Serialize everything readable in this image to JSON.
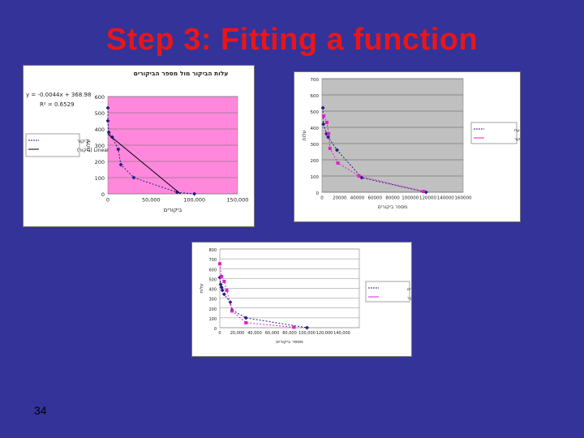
{
  "slide": {
    "title": "Step 3: Fitting a function",
    "page_number": "34"
  },
  "chart_data": [
    {
      "type": "scatter",
      "title": "עלות הביקור מול מספר הביקורים",
      "xlabel": "ביקורים",
      "ylabel": "עלות",
      "xlim": [
        0,
        150000
      ],
      "ylim": [
        0,
        600
      ],
      "x_ticks": [
        "0",
        "50,000",
        "100,000",
        "150,000"
      ],
      "y_ticks": [
        "0",
        "100",
        "200",
        "300",
        "400",
        "500",
        "600"
      ],
      "equation": "y = -0.0044x + 368.98",
      "r2": "R² = 0.6529",
      "plot_background": "#ff88dd",
      "legend": [
        "ביקור",
        "Linear (ביקור)"
      ],
      "series": [
        {
          "name": "ביקור",
          "color": "#202080",
          "points": [
            [
              0,
              530
            ],
            [
              0,
              450
            ],
            [
              1000,
              380
            ],
            [
              5000,
              350
            ],
            [
              12000,
              275
            ],
            [
              15000,
              180
            ],
            [
              30000,
              100
            ],
            [
              80000,
              10
            ],
            [
              100000,
              0
            ]
          ]
        },
        {
          "name": "Linear (ביקור)",
          "color": "#000000",
          "points": [
            [
              0,
              369
            ],
            [
              83859,
              0
            ]
          ]
        }
      ]
    },
    {
      "type": "scatter",
      "title": "",
      "xlabel": "מספר ביקורים",
      "ylabel": "עלות",
      "xlim": [
        0,
        160000
      ],
      "ylim": [
        0,
        700
      ],
      "x_ticks": [
        "0",
        "20000",
        "40000",
        "60000",
        "80000",
        "100000",
        "120000",
        "140000",
        "160000"
      ],
      "y_ticks": [
        "0",
        "100",
        "200",
        "300",
        "400",
        "500",
        "600",
        "700"
      ],
      "plot_background": "#c0c0c0",
      "legend": [
        "עלות ממוצעת",
        "עק ביקור"
      ],
      "series": [
        {
          "name": "עלות ממוצעת",
          "color": "#202080",
          "points": [
            [
              1000,
              520
            ],
            [
              1500,
              420
            ],
            [
              5000,
              360
            ],
            [
              7000,
              340
            ],
            [
              17000,
              260
            ],
            [
              45000,
              90
            ],
            [
              118000,
              0
            ]
          ]
        },
        {
          "name": "עק ביקור",
          "color": "#dd22cc",
          "points": [
            [
              2000,
              470
            ],
            [
              5500,
              430
            ],
            [
              7500,
              360
            ],
            [
              9000,
              270
            ],
            [
              18000,
              180
            ],
            [
              42000,
              100
            ],
            [
              115000,
              5
            ]
          ]
        }
      ]
    },
    {
      "type": "scatter",
      "title": "",
      "xlabel": "מספר ביקורים",
      "ylabel": "עלות",
      "xlim": [
        0,
        160000
      ],
      "ylim": [
        0,
        800
      ],
      "x_ticks": [
        "0",
        "20,000",
        "40,000",
        "60,000",
        "80,000",
        "100,000",
        "120,000",
        "140,000"
      ],
      "y_ticks": [
        "0",
        "100",
        "200",
        "300",
        "400",
        "500",
        "600",
        "700",
        "800"
      ],
      "plot_background": "#ffffff",
      "legend": [
        "מספר ביקורים",
        "עק ביקור"
      ],
      "series": [
        {
          "name": "מספר ביקורים",
          "color": "#202080",
          "points": [
            [
              0,
              510
            ],
            [
              1000,
              440
            ],
            [
              2000,
              410
            ],
            [
              3000,
              380
            ],
            [
              5000,
              340
            ],
            [
              12000,
              260
            ],
            [
              14000,
              180
            ],
            [
              30000,
              100
            ],
            [
              100000,
              0
            ]
          ]
        },
        {
          "name": "עק ביקור",
          "color": "#dd22cc",
          "points": [
            [
              0,
              650
            ],
            [
              2000,
              520
            ],
            [
              5000,
              470
            ],
            [
              8000,
              380
            ],
            [
              14000,
              170
            ],
            [
              30000,
              50
            ],
            [
              85000,
              5
            ]
          ]
        }
      ]
    }
  ]
}
